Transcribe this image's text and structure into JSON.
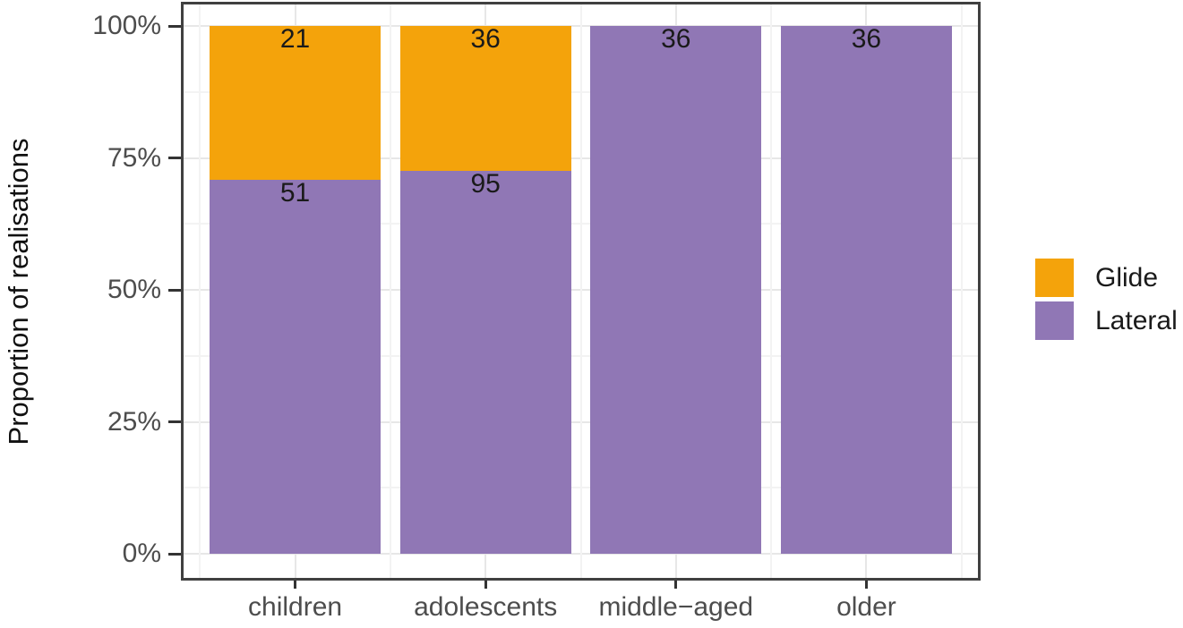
{
  "chart_data": {
    "type": "bar",
    "subtype": "stacked-100-percent",
    "title": "",
    "xlabel": "",
    "ylabel": "Proportion of realisations",
    "categories": [
      "children",
      "adolescents",
      "middle−aged",
      "older"
    ],
    "series": [
      {
        "name": "Glide",
        "color": "#f4a30b",
        "values": [
          21,
          36,
          0,
          0
        ]
      },
      {
        "name": "Lateral",
        "color": "#9077b5",
        "values": [
          51,
          95,
          36,
          36
        ]
      }
    ],
    "value_labels_shown": [
      {
        "category": "children",
        "series": "Glide",
        "label": "21"
      },
      {
        "category": "children",
        "series": "Lateral",
        "label": "51"
      },
      {
        "category": "adolescents",
        "series": "Glide",
        "label": "36"
      },
      {
        "category": "adolescents",
        "series": "Lateral",
        "label": "95"
      },
      {
        "category": "middle−aged",
        "series": "Lateral",
        "label": "36"
      },
      {
        "category": "older",
        "series": "Lateral",
        "label": "36"
      }
    ],
    "y_ticks": [
      {
        "value": 0,
        "label": "0%"
      },
      {
        "value": 25,
        "label": "25%"
      },
      {
        "value": 50,
        "label": "50%"
      },
      {
        "value": 75,
        "label": "75%"
      },
      {
        "value": 100,
        "label": "100%"
      }
    ],
    "y_minor_ticks": [
      12.5,
      37.5,
      62.5,
      87.5
    ],
    "ylim": [
      0,
      100
    ],
    "grid": "major-and-minor",
    "legend_position": "right",
    "colors": {
      "panel_border": "#404040",
      "axis_text": "#4d4d4d",
      "grid_major": "#e7e7e7",
      "grid_minor": "#f3f3f3",
      "label_text": "#1a1a1a"
    }
  }
}
